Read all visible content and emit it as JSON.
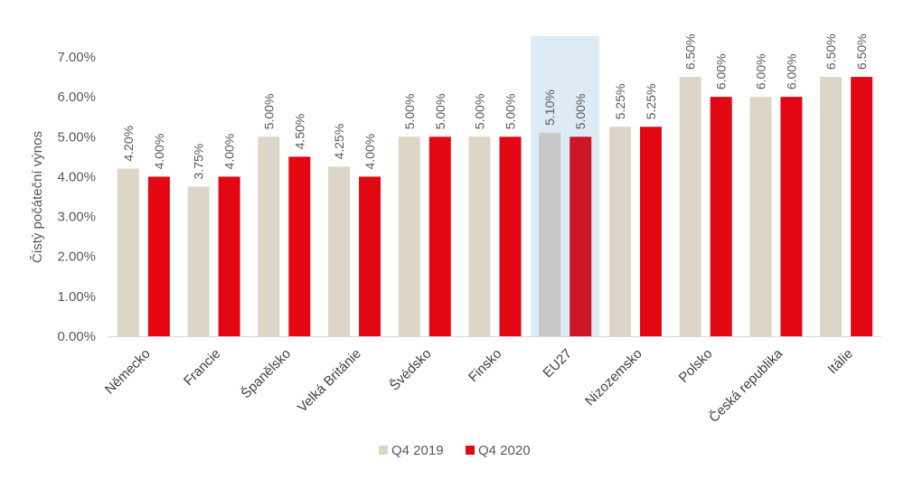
{
  "chart_data": {
    "type": "bar",
    "title": "",
    "xlabel": "",
    "ylabel": "Čistý počáteční výnos",
    "ylim": [
      0,
      7
    ],
    "yticks": [
      "0.00%",
      "1.00%",
      "2.00%",
      "3.00%",
      "4.00%",
      "5.00%",
      "6.00%",
      "7.00%"
    ],
    "categories": [
      "Německo",
      "Francie",
      "Španělsko",
      "Velká Británie",
      "Švédsko",
      "Finsko",
      "EU27",
      "Nizozemsko",
      "Polsko",
      "Česká republika",
      "Itálie"
    ],
    "highlight_category": "EU27",
    "series": [
      {
        "name": "Q4 2019",
        "color": "#DDD6C7",
        "values": [
          4.2,
          3.75,
          5.0,
          4.25,
          5.0,
          5.0,
          5.1,
          5.25,
          6.5,
          6.0,
          6.5
        ],
        "labels": [
          "4.20%",
          "3.75%",
          "5.00%",
          "4.25%",
          "5.00%",
          "5.00%",
          "5.10%",
          "5.25%",
          "6.50%",
          "6.00%",
          "6.50%"
        ]
      },
      {
        "name": "Q4 2020",
        "color": "#E30613",
        "values": [
          4.0,
          4.0,
          4.5,
          4.0,
          5.0,
          5.0,
          5.0,
          5.25,
          6.0,
          6.0,
          6.5
        ],
        "labels": [
          "4.00%",
          "4.00%",
          "4.50%",
          "4.00%",
          "5.00%",
          "5.00%",
          "5.00%",
          "5.25%",
          "6.00%",
          "6.00%",
          "6.50%"
        ]
      }
    ],
    "legend_position": "bottom",
    "highlight_colors": {
      "band": "#DDEBF7",
      "series_0": "#C8C9C6",
      "series_1": "#CC1626"
    },
    "grid": false
  }
}
